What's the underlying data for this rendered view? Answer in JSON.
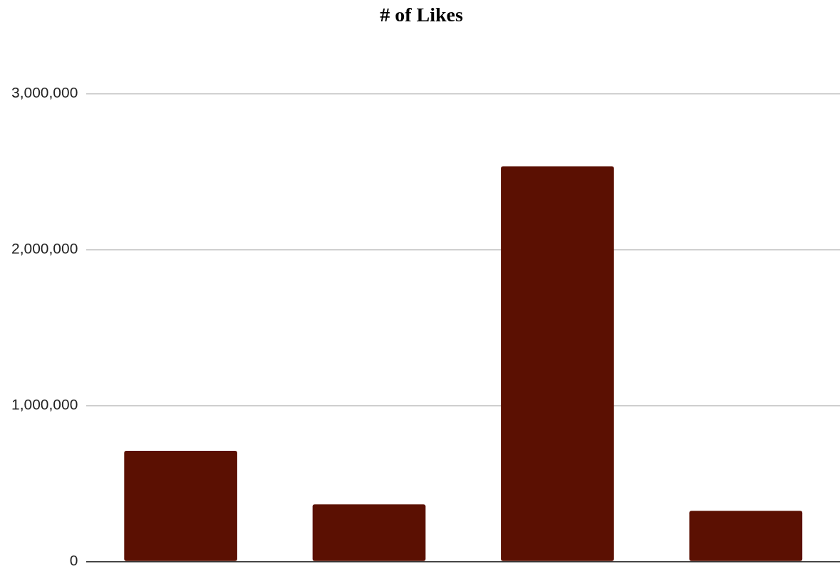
{
  "chart_data": {
    "type": "bar",
    "title": "# of Likes",
    "categories": [
      null,
      null,
      null,
      null
    ],
    "values": [
      710000,
      366000,
      2535000,
      325000
    ],
    "color": "#5b1002",
    "ylim": [
      0,
      3000000
    ],
    "yticks": [
      0,
      {
        "value": 1000000,
        "label": "1,000,000"
      },
      {
        "value": 2000000,
        "label": "2,000,000"
      },
      {
        "value": 3000000,
        "label": "3,000,000"
      }
    ],
    "grid": "y",
    "legend": false
  }
}
